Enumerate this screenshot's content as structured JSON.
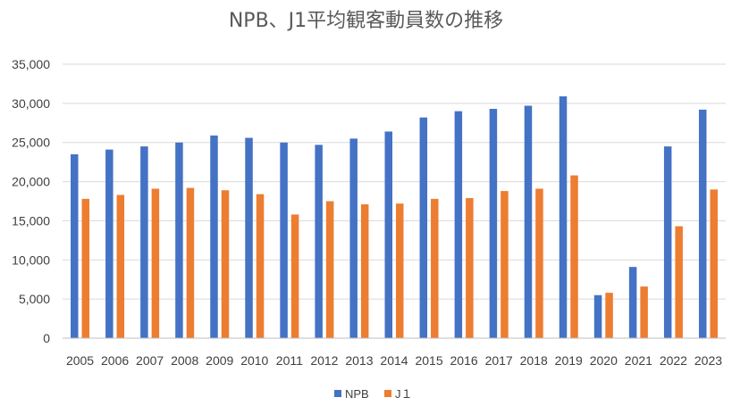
{
  "chart_data": {
    "type": "bar",
    "title": "NPB、J1平均観客動員数の推移",
    "xlabel": "",
    "ylabel": "",
    "ylim": [
      0,
      35000
    ],
    "yticks": [
      0,
      5000,
      10000,
      15000,
      20000,
      25000,
      30000,
      35000
    ],
    "ytick_labels": [
      "0",
      "5,000",
      "10,000",
      "15,000",
      "20,000",
      "25,000",
      "30,000",
      "35,000"
    ],
    "grid": true,
    "legend_position": "bottom",
    "categories": [
      "2005",
      "2006",
      "2007",
      "2008",
      "2009",
      "2010",
      "2011",
      "2012",
      "2013",
      "2014",
      "2015",
      "2016",
      "2017",
      "2018",
      "2019",
      "2020",
      "2021",
      "2022",
      "2023"
    ],
    "series": [
      {
        "name": "NPB",
        "color": "#4472c4",
        "values": [
          23500,
          24100,
          24500,
          25000,
          25900,
          25600,
          25000,
          24700,
          25500,
          26400,
          28200,
          29000,
          29300,
          29700,
          30900,
          5500,
          9100,
          24500,
          29200
        ]
      },
      {
        "name": "J１",
        "color": "#ed7d31",
        "values": [
          17800,
          18300,
          19100,
          19200,
          18900,
          18400,
          15800,
          17500,
          17100,
          17200,
          17800,
          17900,
          18800,
          19100,
          20800,
          5800,
          6600,
          14300,
          19000
        ]
      }
    ]
  }
}
